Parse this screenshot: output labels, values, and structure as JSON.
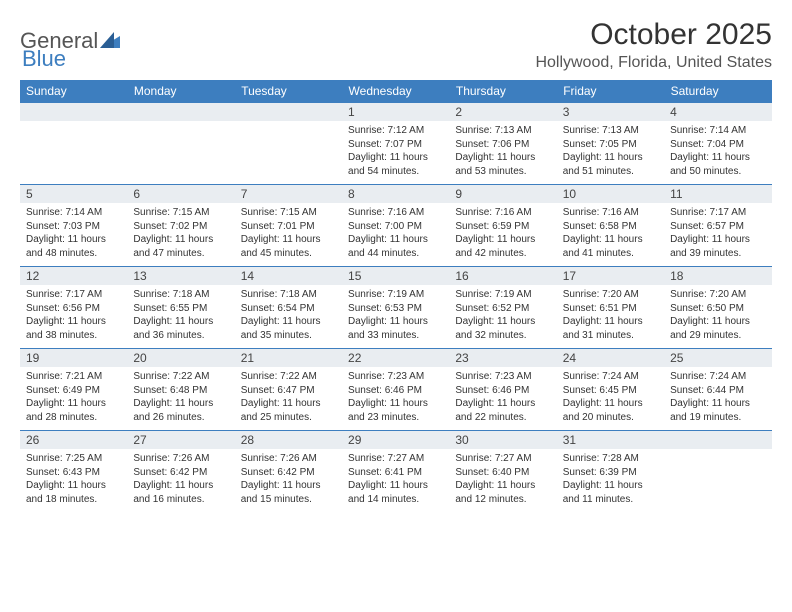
{
  "brand": {
    "first": "General",
    "second": "Blue"
  },
  "title": "October 2025",
  "location": "Hollywood, Florida, United States",
  "colors": {
    "header_bg": "#3d7ebf",
    "header_text": "#ffffff",
    "daynum_bg": "#e9edf1",
    "border": "#3d7ebf",
    "body_bg": "#ffffff",
    "text": "#333333"
  },
  "typography": {
    "title_fontsize": 30,
    "location_fontsize": 16,
    "dayheader_fontsize": 12,
    "cell_fontsize": 10
  },
  "layout": {
    "columns": 7,
    "rows_of_weeks": 5,
    "first_day_column_index": 3
  },
  "day_headers": [
    "Sunday",
    "Monday",
    "Tuesday",
    "Wednesday",
    "Thursday",
    "Friday",
    "Saturday"
  ],
  "days": [
    {
      "n": 1,
      "sr": "7:12 AM",
      "ss": "7:07 PM",
      "dl": "11 hours and 54 minutes."
    },
    {
      "n": 2,
      "sr": "7:13 AM",
      "ss": "7:06 PM",
      "dl": "11 hours and 53 minutes."
    },
    {
      "n": 3,
      "sr": "7:13 AM",
      "ss": "7:05 PM",
      "dl": "11 hours and 51 minutes."
    },
    {
      "n": 4,
      "sr": "7:14 AM",
      "ss": "7:04 PM",
      "dl": "11 hours and 50 minutes."
    },
    {
      "n": 5,
      "sr": "7:14 AM",
      "ss": "7:03 PM",
      "dl": "11 hours and 48 minutes."
    },
    {
      "n": 6,
      "sr": "7:15 AM",
      "ss": "7:02 PM",
      "dl": "11 hours and 47 minutes."
    },
    {
      "n": 7,
      "sr": "7:15 AM",
      "ss": "7:01 PM",
      "dl": "11 hours and 45 minutes."
    },
    {
      "n": 8,
      "sr": "7:16 AM",
      "ss": "7:00 PM",
      "dl": "11 hours and 44 minutes."
    },
    {
      "n": 9,
      "sr": "7:16 AM",
      "ss": "6:59 PM",
      "dl": "11 hours and 42 minutes."
    },
    {
      "n": 10,
      "sr": "7:16 AM",
      "ss": "6:58 PM",
      "dl": "11 hours and 41 minutes."
    },
    {
      "n": 11,
      "sr": "7:17 AM",
      "ss": "6:57 PM",
      "dl": "11 hours and 39 minutes."
    },
    {
      "n": 12,
      "sr": "7:17 AM",
      "ss": "6:56 PM",
      "dl": "11 hours and 38 minutes."
    },
    {
      "n": 13,
      "sr": "7:18 AM",
      "ss": "6:55 PM",
      "dl": "11 hours and 36 minutes."
    },
    {
      "n": 14,
      "sr": "7:18 AM",
      "ss": "6:54 PM",
      "dl": "11 hours and 35 minutes."
    },
    {
      "n": 15,
      "sr": "7:19 AM",
      "ss": "6:53 PM",
      "dl": "11 hours and 33 minutes."
    },
    {
      "n": 16,
      "sr": "7:19 AM",
      "ss": "6:52 PM",
      "dl": "11 hours and 32 minutes."
    },
    {
      "n": 17,
      "sr": "7:20 AM",
      "ss": "6:51 PM",
      "dl": "11 hours and 31 minutes."
    },
    {
      "n": 18,
      "sr": "7:20 AM",
      "ss": "6:50 PM",
      "dl": "11 hours and 29 minutes."
    },
    {
      "n": 19,
      "sr": "7:21 AM",
      "ss": "6:49 PM",
      "dl": "11 hours and 28 minutes."
    },
    {
      "n": 20,
      "sr": "7:22 AM",
      "ss": "6:48 PM",
      "dl": "11 hours and 26 minutes."
    },
    {
      "n": 21,
      "sr": "7:22 AM",
      "ss": "6:47 PM",
      "dl": "11 hours and 25 minutes."
    },
    {
      "n": 22,
      "sr": "7:23 AM",
      "ss": "6:46 PM",
      "dl": "11 hours and 23 minutes."
    },
    {
      "n": 23,
      "sr": "7:23 AM",
      "ss": "6:46 PM",
      "dl": "11 hours and 22 minutes."
    },
    {
      "n": 24,
      "sr": "7:24 AM",
      "ss": "6:45 PM",
      "dl": "11 hours and 20 minutes."
    },
    {
      "n": 25,
      "sr": "7:24 AM",
      "ss": "6:44 PM",
      "dl": "11 hours and 19 minutes."
    },
    {
      "n": 26,
      "sr": "7:25 AM",
      "ss": "6:43 PM",
      "dl": "11 hours and 18 minutes."
    },
    {
      "n": 27,
      "sr": "7:26 AM",
      "ss": "6:42 PM",
      "dl": "11 hours and 16 minutes."
    },
    {
      "n": 28,
      "sr": "7:26 AM",
      "ss": "6:42 PM",
      "dl": "11 hours and 15 minutes."
    },
    {
      "n": 29,
      "sr": "7:27 AM",
      "ss": "6:41 PM",
      "dl": "11 hours and 14 minutes."
    },
    {
      "n": 30,
      "sr": "7:27 AM",
      "ss": "6:40 PM",
      "dl": "11 hours and 12 minutes."
    },
    {
      "n": 31,
      "sr": "7:28 AM",
      "ss": "6:39 PM",
      "dl": "11 hours and 11 minutes."
    }
  ],
  "labels": {
    "sunrise": "Sunrise:",
    "sunset": "Sunset:",
    "daylight": "Daylight:"
  }
}
